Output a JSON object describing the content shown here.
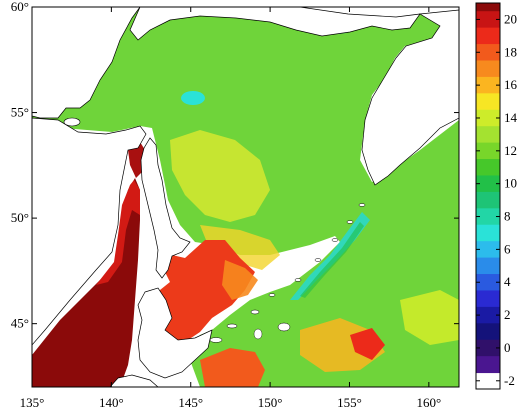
{
  "map": {
    "lon_ticks": [
      {
        "value": 135,
        "label": "135°"
      },
      {
        "value": 140,
        "label": "140°"
      },
      {
        "value": 145,
        "label": "145°"
      },
      {
        "value": 150,
        "label": "150°"
      },
      {
        "value": 155,
        "label": "155°"
      },
      {
        "value": 160,
        "label": "160°"
      }
    ],
    "lat_ticks": [
      {
        "value": 60,
        "label": "60°"
      },
      {
        "value": 55,
        "label": "55°"
      },
      {
        "value": 50,
        "label": "50°"
      },
      {
        "value": 45,
        "label": "45°"
      }
    ]
  },
  "colorbar": {
    "levels": [
      {
        "value": 20,
        "label": "20"
      },
      {
        "value": 18,
        "label": "18"
      },
      {
        "value": 16,
        "label": "16"
      },
      {
        "value": 14,
        "label": "14"
      },
      {
        "value": 12,
        "label": "12"
      },
      {
        "value": 10,
        "label": "10"
      },
      {
        "value": 8,
        "label": "8"
      },
      {
        "value": 6,
        "label": "6"
      },
      {
        "value": 4,
        "label": "4"
      },
      {
        "value": 2,
        "label": "2"
      },
      {
        "value": 0,
        "label": "0"
      },
      {
        "value": -2,
        "label": "-2"
      }
    ],
    "colors": [
      "#8b0a0a",
      "#c81414",
      "#ec2a1a",
      "#f25a1c",
      "#f78a1e",
      "#fbb520",
      "#f7e624",
      "#cdec2a",
      "#a4e230",
      "#78d62a",
      "#46c82a",
      "#22c048",
      "#1ec476",
      "#22d6a6",
      "#2ae2d8",
      "#2cbcec",
      "#2a8cea",
      "#2a5ae0",
      "#2a2ad2",
      "#1a1aa4",
      "#14127a",
      "#30106a",
      "#4a1690"
    ],
    "color_values": [
      21,
      20,
      19,
      18,
      17,
      16,
      15,
      14,
      13,
      12,
      11,
      10,
      9,
      8,
      7,
      6,
      5,
      4,
      3,
      2,
      1,
      0,
      -1
    ]
  }
}
